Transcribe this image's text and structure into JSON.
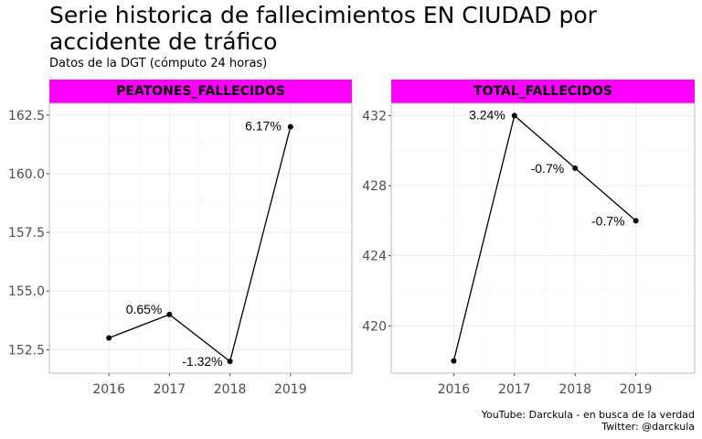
{
  "title": "Serie historica de fallecimientos EN CIUDAD por accidente de tráfico",
  "subtitle": "Datos de la DGT (cómputo 24 horas)",
  "caption": {
    "line1": "YouTube: Darckula - en busca de la verdad",
    "line2": "Twitter: @darckula"
  },
  "colors": {
    "strip": "#ff00ff",
    "line": "#000000",
    "grid_major": "#ebebeb",
    "grid_minor": "#f5f5f5",
    "panel_border": "#bdbdbd",
    "tick_text": "#4d4d4d"
  },
  "chart_data": [
    {
      "type": "line",
      "facet": "PEATONES_FALLECIDOS",
      "x": [
        2016,
        2017,
        2018,
        2019
      ],
      "values": [
        153,
        154,
        152,
        162
      ],
      "labels": [
        "",
        "0.65%",
        "-1.32%",
        "6.17%"
      ],
      "yticks": [
        152.5,
        155.0,
        157.5,
        160.0,
        162.5
      ],
      "ytick_labels": [
        "152.5",
        "155.0",
        "157.5",
        "160.0",
        "162.5"
      ],
      "ylim": [
        151.5,
        163.0
      ],
      "xticks": [
        "2016",
        "2017",
        "2018",
        "2019"
      ],
      "grid": true
    },
    {
      "type": "line",
      "facet": "TOTAL_FALLECIDOS",
      "x": [
        2016,
        2017,
        2018,
        2019
      ],
      "values": [
        418,
        432,
        429,
        426
      ],
      "labels": [
        "",
        "3.24%",
        "-0.7%",
        "-0.7%"
      ],
      "yticks": [
        420,
        424,
        428,
        432
      ],
      "ytick_labels": [
        "420",
        "424",
        "428",
        "432"
      ],
      "ylim": [
        417.3,
        432.7
      ],
      "xticks": [
        "2016",
        "2017",
        "2018",
        "2019"
      ],
      "grid": true
    }
  ]
}
